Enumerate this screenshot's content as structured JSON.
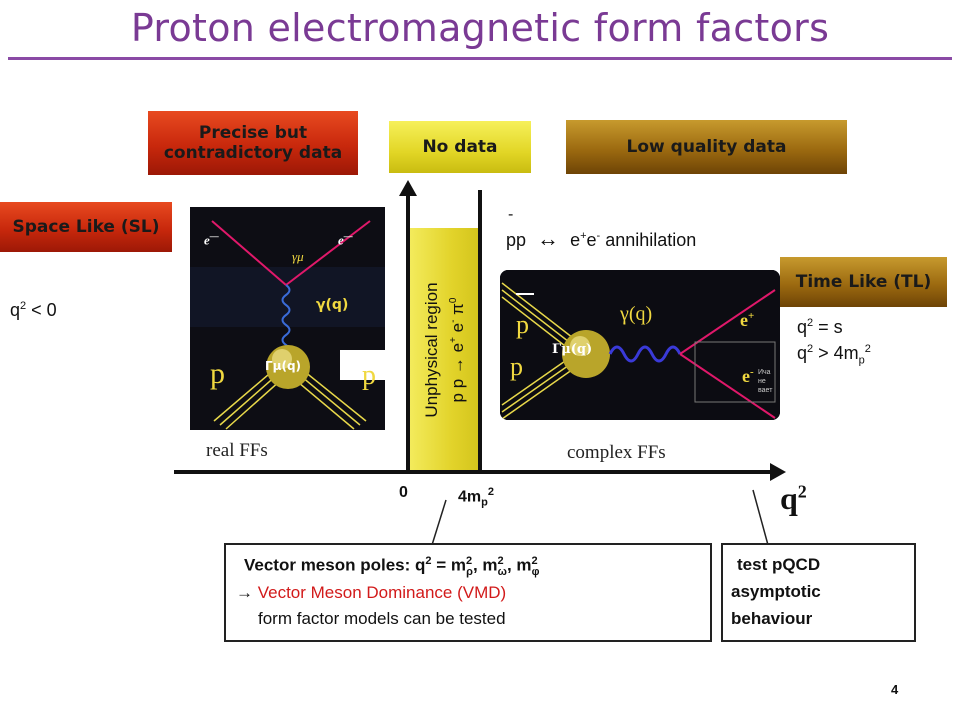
{
  "title": "Proton electromagnetic form factors",
  "headers": {
    "precise": [
      "Precise but",
      "contradictory data"
    ],
    "no_data": "No data",
    "low_quality": "Low quality data",
    "space_like": "Space Like (SL)",
    "time_like": "Time Like (TL)"
  },
  "conditions": {
    "sl": {
      "q": "q",
      "exp": "2",
      "rest": " < 0"
    },
    "tl1": {
      "q": "q",
      "exp": "2",
      "rest": " = s"
    },
    "tl2": {
      "q": "q",
      "exp": "2",
      "rest": " > 4m",
      "sub": "p",
      "exp2": "2"
    }
  },
  "annihilation": {
    "bar": "-",
    "pp": "pp",
    "arrow": "↔",
    "e": "e",
    "plus": "+",
    "e2": "e",
    "minus": "-",
    "word": " annihilation"
  },
  "unphysical": {
    "label": "Unphysical region",
    "reaction": "p p → e",
    "plus": "+",
    "e2": " e",
    "minus": "-",
    "pi": " π",
    "zero": "0"
  },
  "axis": {
    "zero": "0",
    "threshold": {
      "m": "4m",
      "sub": "p",
      "exp": "2"
    },
    "q2": {
      "q": "q",
      "exp": "2"
    },
    "real": "real FFs",
    "complex": "complex FFs"
  },
  "sl_diagram": {
    "e_left": "e",
    "e_left_sup": "—",
    "e_right": "e",
    "e_right_sup": "—",
    "gamma_mu": "γμ",
    "gamma_q": "γ(q)",
    "vertex": "Γμ(q)",
    "p_left": "p",
    "p_right": "p"
  },
  "tl_diagram": {
    "p_top": "p",
    "p_bottom": "p",
    "gamma_q": "γ(q)",
    "vertex": "Γμ(q)",
    "e_plus": "e",
    "plus": "+",
    "e_minus": "e",
    "minus": "-",
    "tiny1": "Ича",
    "tiny2": "не",
    "tiny3": "вает"
  },
  "callout_vmd": {
    "line1_a": "Vector meson poles: q",
    "line1_exp": "2",
    "line1_b": " = m",
    "line1_exp2": "2",
    "line1_sub_rho": "ρ",
    "line1_c": ", m",
    "line1_exp3": "2",
    "line1_sub_omega": "ω",
    "line1_d": ", m",
    "line1_exp4": "2",
    "line1_sub_phi": "φ",
    "line2_arrow": "→",
    "line2": " Vector Meson Dominance (VMD)",
    "line3": "form factor models can be tested"
  },
  "callout_pqcd": {
    "line1": "test pQCD",
    "line2": "asymptotic",
    "line3": "behaviour"
  },
  "page_number": "4",
  "colors": {
    "title": "#7a3a94",
    "space_like": "#d0330f",
    "no_data": "#ece43a",
    "low_quality": "#a8741a",
    "vmd_red": "#d21a1a",
    "unphysical_band": "#e8dc3a"
  }
}
